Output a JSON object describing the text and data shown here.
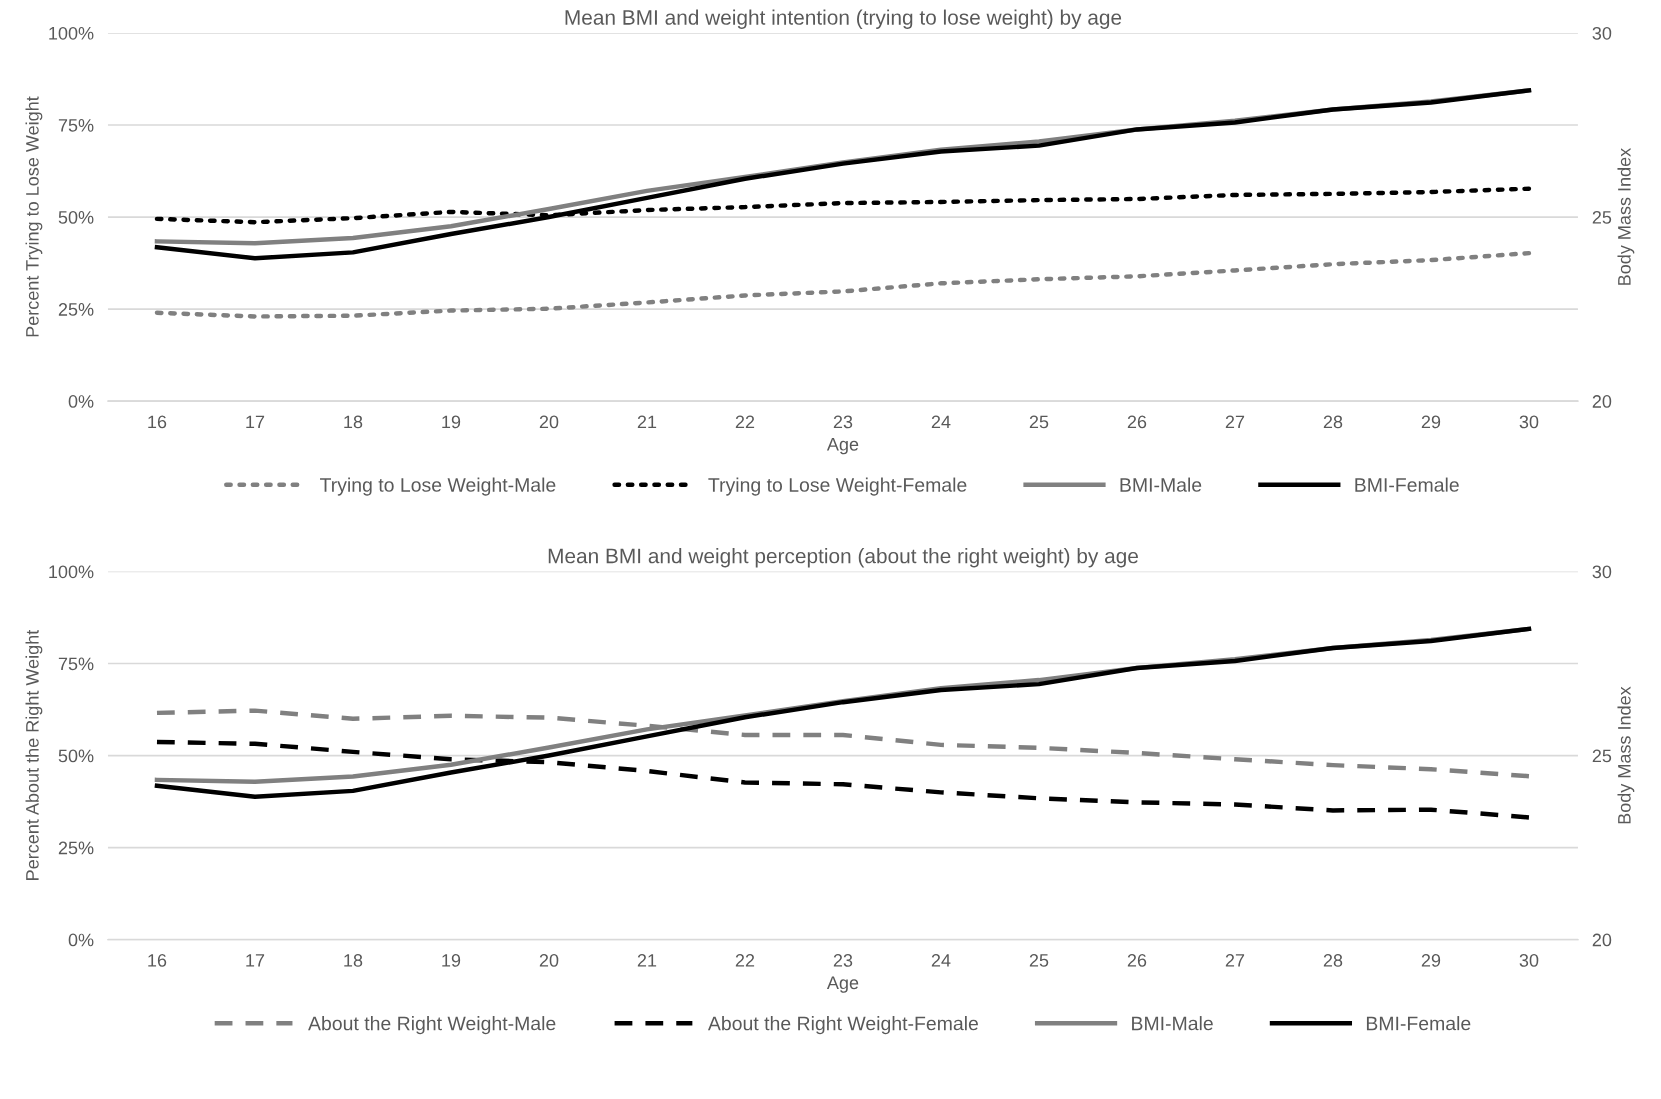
{
  "chart_data": [
    {
      "type": "line",
      "title": "Mean BMI and weight intention (trying to lose weight) by age",
      "xlabel": "Age",
      "ylabel": "Percent Trying to Lose Weight",
      "y2label": "Body Mass Index",
      "categories": [
        "16",
        "17",
        "18",
        "19",
        "20",
        "21",
        "22",
        "23",
        "24",
        "25",
        "26",
        "27",
        "28",
        "29",
        "30"
      ],
      "ylim": [
        0,
        100
      ],
      "yticks": [
        {
          "value": 0,
          "label": "0%"
        },
        {
          "value": 25,
          "label": "25%"
        },
        {
          "value": 50,
          "label": "50%"
        },
        {
          "value": 75,
          "label": "75%"
        },
        {
          "value": 100,
          "label": "100%"
        }
      ],
      "y2lim": [
        20,
        30
      ],
      "y2ticks": [
        20,
        25,
        30
      ],
      "grid": "y",
      "legend": "bottom",
      "series": [
        {
          "name": "Trying to Lose Weight-Male",
          "color": "#808080",
          "line_style": "dotted",
          "values": [
            24.0,
            23.0,
            23.2,
            24.6,
            25.1,
            26.8,
            28.7,
            29.8,
            32.0,
            33.1,
            33.9,
            35.5,
            37.2,
            38.3,
            40.2
          ]
        },
        {
          "name": "Trying to Lose Weight-Female",
          "color": "#000000",
          "line_style": "dotted",
          "values": [
            49.5,
            48.6,
            49.7,
            51.4,
            50.5,
            51.9,
            52.7,
            53.8,
            54.1,
            54.6,
            54.9,
            56.0,
            56.3,
            56.8,
            57.7
          ]
        },
        {
          "name": "BMI-Male",
          "color": "#808080",
          "line_style": "solid",
          "axis": "y2",
          "values": [
            24.34,
            24.29,
            24.43,
            24.75,
            25.22,
            25.71,
            26.09,
            26.48,
            26.83,
            27.05,
            27.38,
            27.62,
            27.92,
            28.14,
            28.44
          ]
        },
        {
          "name": "BMI-Female",
          "color": "#000000",
          "line_style": "solid",
          "axis": "y2",
          "values": [
            24.18,
            23.88,
            24.04,
            24.54,
            25.0,
            25.52,
            26.04,
            26.45,
            26.78,
            26.94,
            27.38,
            27.57,
            27.92,
            28.11,
            28.44
          ]
        }
      ]
    },
    {
      "type": "line",
      "title": "Mean BMI and weight perception (about the right weight) by age",
      "xlabel": "Age",
      "ylabel": "Percent About the Right Weight",
      "y2label": "Body Mass Index",
      "categories": [
        "16",
        "17",
        "18",
        "19",
        "20",
        "21",
        "22",
        "23",
        "24",
        "25",
        "26",
        "27",
        "28",
        "29",
        "30"
      ],
      "ylim": [
        0,
        100
      ],
      "yticks": [
        {
          "value": 0,
          "label": "0%"
        },
        {
          "value": 25,
          "label": "25%"
        },
        {
          "value": 50,
          "label": "50%"
        },
        {
          "value": 75,
          "label": "75%"
        },
        {
          "value": 100,
          "label": "100%"
        }
      ],
      "y2lim": [
        20,
        30
      ],
      "y2ticks": [
        20,
        25,
        30
      ],
      "grid": "y",
      "legend": "bottom",
      "series": [
        {
          "name": "About the Right Weight-Male",
          "color": "#808080",
          "line_style": "dashed",
          "values": [
            61.6,
            62.2,
            60.0,
            60.8,
            60.3,
            58.1,
            55.6,
            55.6,
            52.9,
            52.1,
            50.7,
            49.0,
            47.4,
            46.3,
            44.4
          ]
        },
        {
          "name": "About the Right Weight-Female",
          "color": "#000000",
          "line_style": "dashed",
          "values": [
            53.7,
            53.2,
            51.0,
            49.0,
            48.2,
            45.8,
            42.7,
            42.2,
            40.0,
            38.4,
            37.3,
            36.7,
            35.1,
            35.3,
            33.2
          ]
        },
        {
          "name": "BMI-Male",
          "color": "#808080",
          "line_style": "solid",
          "axis": "y2",
          "values": [
            24.34,
            24.29,
            24.43,
            24.75,
            25.22,
            25.71,
            26.09,
            26.48,
            26.83,
            27.05,
            27.38,
            27.62,
            27.92,
            28.14,
            28.44
          ]
        },
        {
          "name": "BMI-Female",
          "color": "#000000",
          "line_style": "solid",
          "axis": "y2",
          "values": [
            24.18,
            23.88,
            24.04,
            24.54,
            25.0,
            25.52,
            26.04,
            26.45,
            26.78,
            26.94,
            27.38,
            27.57,
            27.92,
            28.11,
            28.44
          ]
        }
      ]
    }
  ]
}
